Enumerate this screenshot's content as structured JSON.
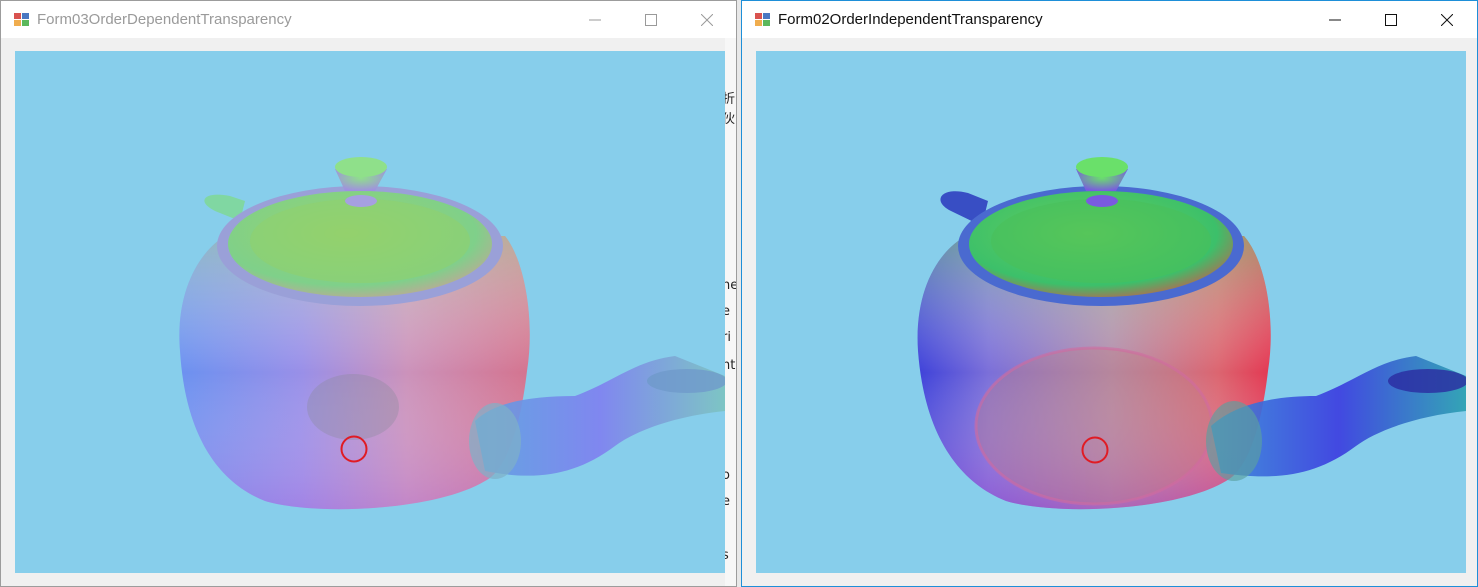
{
  "windows": [
    {
      "id": "left",
      "title": "Form03OrderDependentTransparency",
      "active": false,
      "viewport_bg": "#87ceeb"
    },
    {
      "id": "right",
      "title": "Form02OrderIndependentTransparency",
      "active": true,
      "viewport_bg": "#87ceeb"
    }
  ],
  "controls": {
    "minimize": "minimize-icon",
    "maximize": "maximize-icon",
    "close": "close-icon"
  },
  "colors": {
    "marker": "#e01b24",
    "sky": "#87ceeb",
    "active_border": "#1e8fd8"
  },
  "background_strip_glyphs": [
    "折",
    "伙",
    "ne",
    "e",
    "ri",
    "nt",
    "i",
    "o",
    "e",
    "s"
  ]
}
